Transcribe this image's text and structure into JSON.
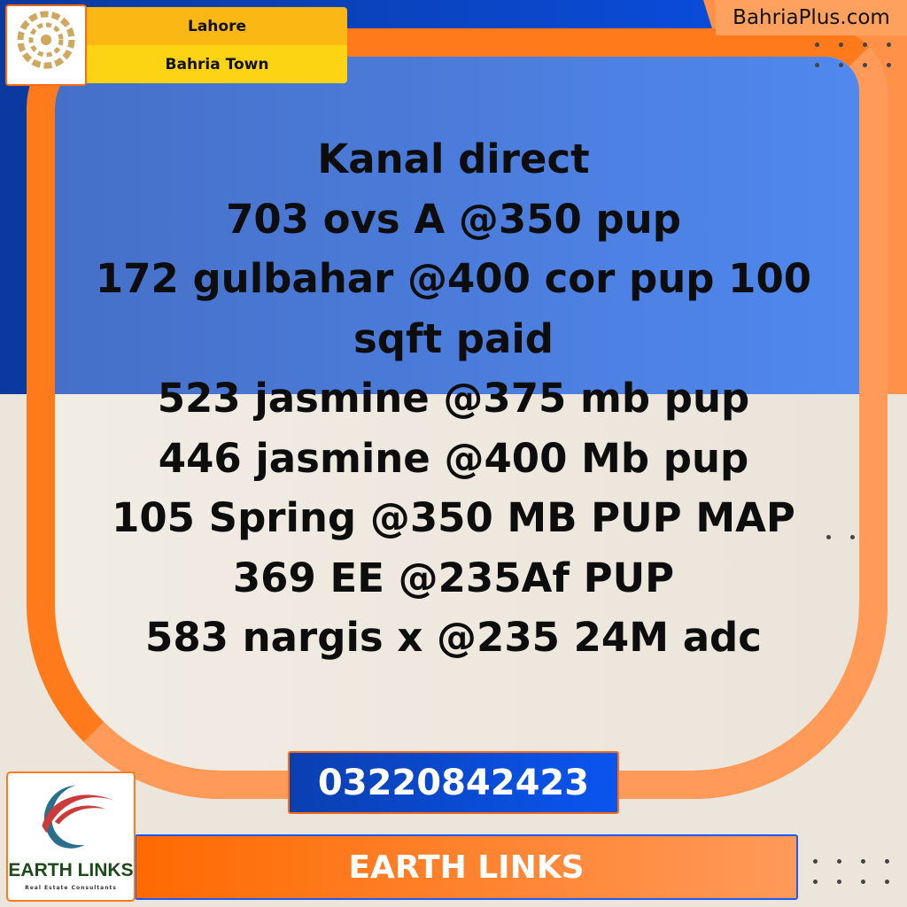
{
  "header": {
    "city": "Lahore",
    "society": "Bahria Town",
    "site": "BahriaPlus.com",
    "society_logo_text": "BAHRIA TOWN"
  },
  "listing": {
    "lines": [
      "Kanal direct",
      "703 ovs A @350 pup",
      "172 gulbahar @400 cor pup 100 sqft paid",
      "523 jasmine @375 mb pup",
      "446 jasmine @400 Mb pup",
      "105 Spring @350 MB PUP MAP",
      "369 EE @235Af PUP",
      "583 nargis x @235 24M adc"
    ]
  },
  "contact": {
    "phone": "03220842423",
    "agency": "EARTH LINKS"
  },
  "agency_logo": {
    "name": "EARTH LINKS",
    "tagline": "Real Estate Consultants"
  },
  "colors": {
    "orange": "#ff7a1a",
    "blue": "#0a50e8",
    "yellow": "#fdd414"
  }
}
